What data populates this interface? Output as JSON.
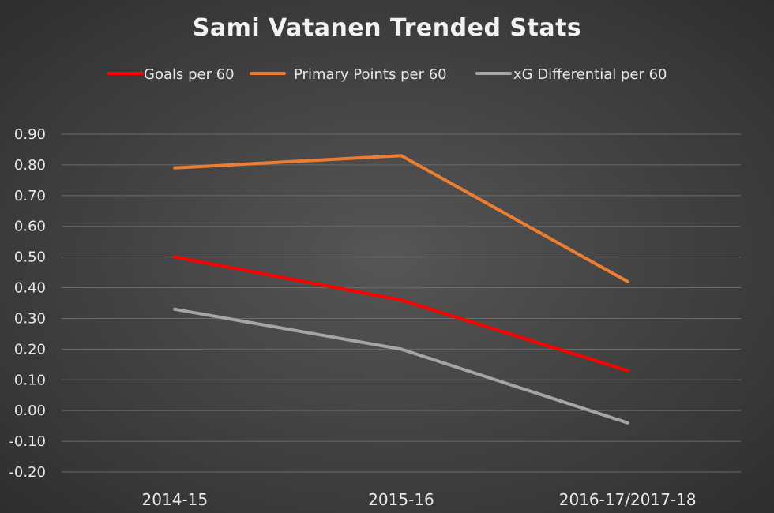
{
  "chart_data": {
    "type": "line",
    "title": "Sami Vatanen Trended Stats",
    "categories": [
      "2014-15",
      "2015-16",
      "2016-17/2017-18"
    ],
    "series": [
      {
        "name": "Goals per 60",
        "color": "#ff0000",
        "values": [
          0.5,
          0.36,
          0.13
        ]
      },
      {
        "name": "Primary Points per 60",
        "color": "#ed7d31",
        "values": [
          0.79,
          0.83,
          0.42
        ]
      },
      {
        "name": "xG Differential per 60",
        "color": "#a5a5a5",
        "values": [
          0.33,
          0.2,
          -0.04
        ]
      }
    ],
    "ylim": [
      -0.2,
      0.9
    ],
    "ytick_step": 0.1,
    "ytick_labels": [
      "-0.20",
      "-0.10",
      "0.00",
      "0.10",
      "0.20",
      "0.30",
      "0.40",
      "0.50",
      "0.60",
      "0.70",
      "0.80",
      "0.90"
    ],
    "grid": true,
    "legend_position": "top",
    "xlabel": "",
    "ylabel": ""
  }
}
